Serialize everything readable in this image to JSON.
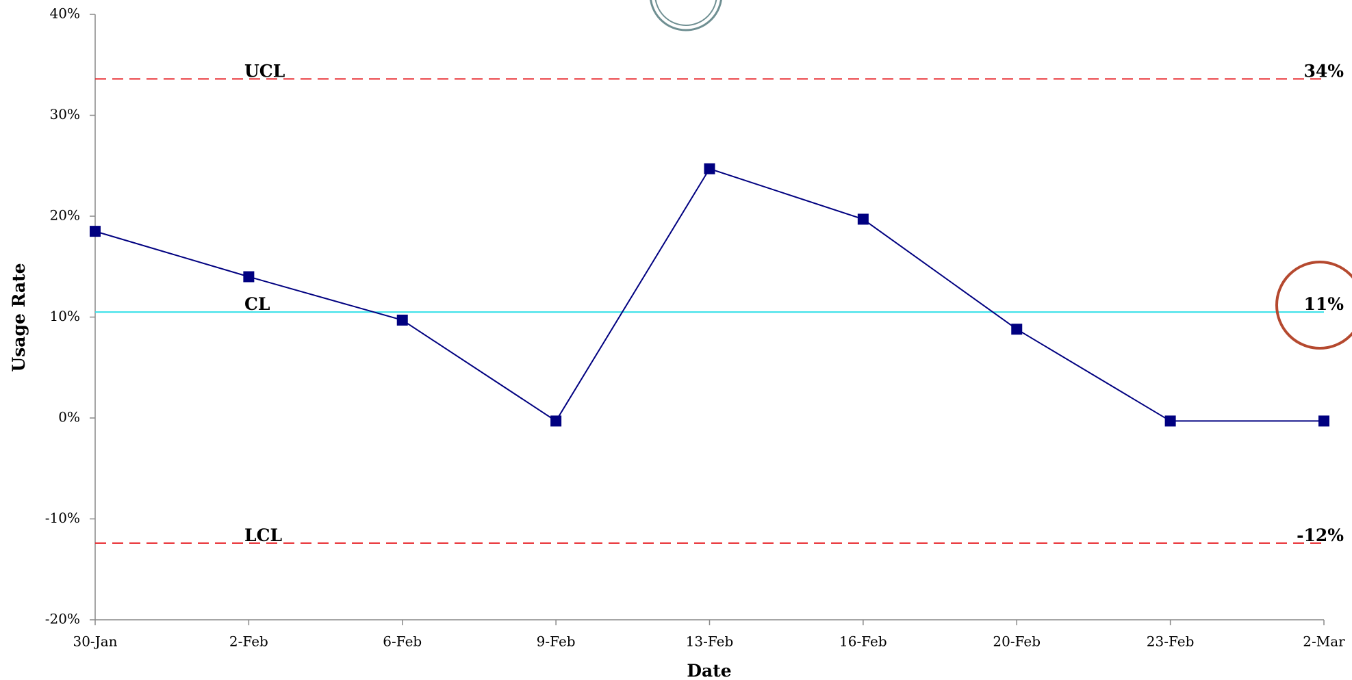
{
  "chart_data": {
    "type": "line",
    "x_label": "Date",
    "y_label": "Usage Rate",
    "categories": [
      "30-Jan",
      "2-Feb",
      "6-Feb",
      "9-Feb",
      "13-Feb",
      "16-Feb",
      "20-Feb",
      "23-Feb",
      "2-Mar"
    ],
    "values": [
      18.5,
      14.0,
      9.7,
      -0.3,
      24.7,
      19.7,
      8.8,
      -0.3,
      -0.3
    ],
    "color": "#000080",
    "ylim": [
      -20,
      40
    ],
    "yticks": [
      {
        "value": -20,
        "label": "-20%"
      },
      {
        "value": -10,
        "label": "-10%"
      },
      {
        "value": 0,
        "label": "0%"
      },
      {
        "value": 10,
        "label": "10%"
      },
      {
        "value": 20,
        "label": "20%"
      },
      {
        "value": 30,
        "label": "30%"
      },
      {
        "value": 40,
        "label": "40%"
      }
    ],
    "control_lines": [
      {
        "label": "UCL",
        "value": 33.6,
        "value_label": "34%",
        "color": "#e8262b",
        "style": "dashed"
      },
      {
        "label": "CL",
        "value": 10.5,
        "value_label": "11%",
        "color": "#33e0e8",
        "style": "solid"
      },
      {
        "label": "LCL",
        "value": -12.4,
        "value_label": "-12%",
        "color": "#e8262b",
        "style": "dashed"
      }
    ]
  }
}
